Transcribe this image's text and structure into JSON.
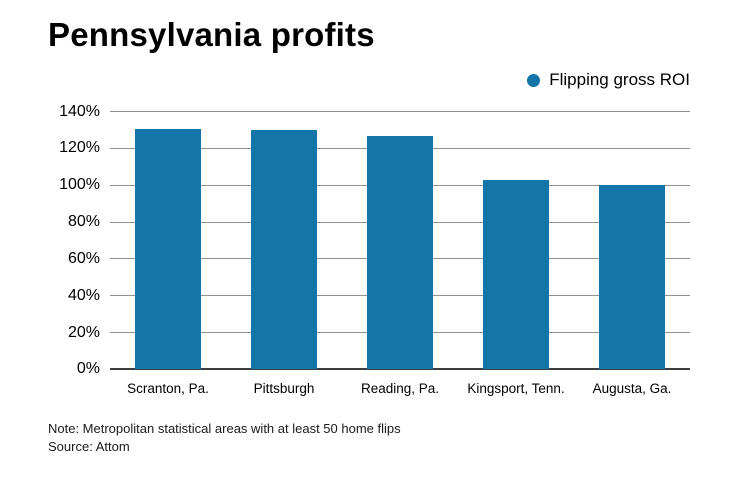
{
  "title": "Pennsylvania profits",
  "legend": {
    "label": "Flipping gross ROI",
    "color": "#1375a8"
  },
  "note": "Note: Metropolitan statistical areas with at least 50 home flips",
  "source": "Source: Attom",
  "chart_data": {
    "type": "bar",
    "title": "Pennsylvania profits",
    "series_name": "Flipping gross ROI",
    "categories": [
      "Scranton, Pa.",
      "Pittsburgh",
      "Reading, Pa.",
      "Kingsport, Tenn.",
      "Augusta, Ga."
    ],
    "values": [
      131,
      130,
      127,
      103,
      100
    ],
    "ylim": [
      0,
      140
    ],
    "ytick_step": 20,
    "ytick_suffix": "%",
    "bar_color": "#1375a8",
    "grid": true,
    "legend_position": "top-right"
  }
}
